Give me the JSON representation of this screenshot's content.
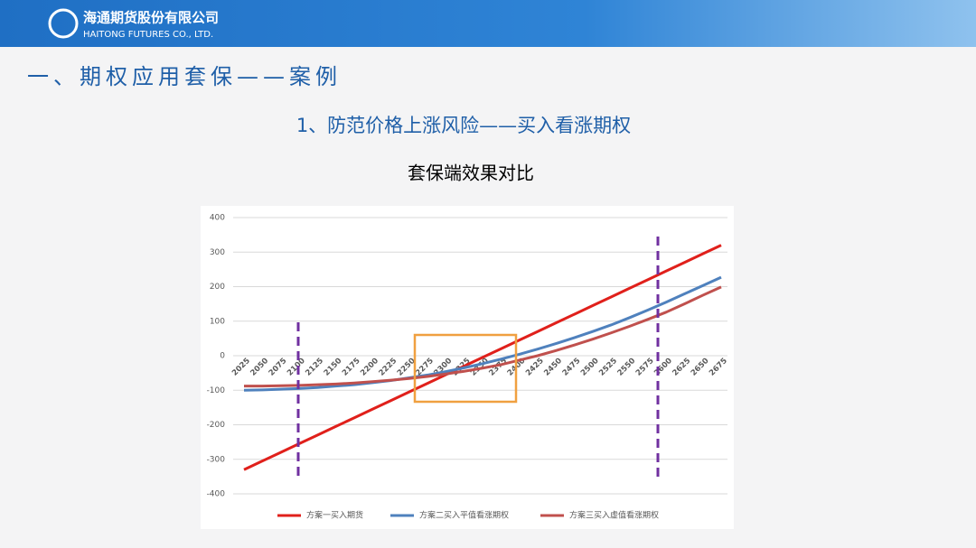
{
  "header": {
    "company_cn": "海通期货股份有限公司",
    "company_en": "HAITONG FUTURES CO., LTD."
  },
  "slide": {
    "title": "一、期权应用套保——案例",
    "subtitle": "1、防范价格上涨风险——买入看涨期权"
  },
  "chart_data": {
    "type": "line",
    "title": "套保端效果对比",
    "x": [
      2025,
      2050,
      2075,
      2100,
      2125,
      2150,
      2175,
      2200,
      2225,
      2250,
      2275,
      2300,
      2325,
      2350,
      2375,
      2400,
      2425,
      2450,
      2475,
      2500,
      2525,
      2550,
      2575,
      2600,
      2625,
      2650,
      2675
    ],
    "series": [
      {
        "name": "方案一买入期货",
        "color": "#e0201b",
        "values": [
          -330,
          -305,
          -280,
          -255,
          -230,
          -205,
          -180,
          -155,
          -130,
          -105,
          -80,
          -55,
          -30,
          -5,
          20,
          45,
          70,
          95,
          120,
          145,
          170,
          195,
          220,
          245,
          270,
          295,
          320
        ]
      },
      {
        "name": "方案二买入平值看涨期权",
        "color": "#4f81bd",
        "values": [
          -100,
          -99,
          -97,
          -95,
          -92,
          -88,
          -84,
          -78,
          -72,
          -64,
          -56,
          -46,
          -35,
          -23,
          -10,
          4,
          19,
          35,
          52,
          70,
          89,
          110,
          132,
          155,
          179,
          203,
          227
        ]
      },
      {
        "name": "方案三买入虚值看涨期权",
        "color": "#c0504d",
        "values": [
          -88,
          -88,
          -87,
          -86,
          -84,
          -82,
          -79,
          -75,
          -71,
          -66,
          -60,
          -53,
          -45,
          -36,
          -26,
          -13,
          0,
          15,
          31,
          48,
          66,
          85,
          105,
          126,
          150,
          175,
          199
        ]
      }
    ],
    "ylim": [
      -400,
      400
    ],
    "yticks": [
      -400,
      -300,
      -200,
      -100,
      0,
      100,
      200,
      300,
      400
    ],
    "grid": true,
    "legend": "bottom"
  }
}
